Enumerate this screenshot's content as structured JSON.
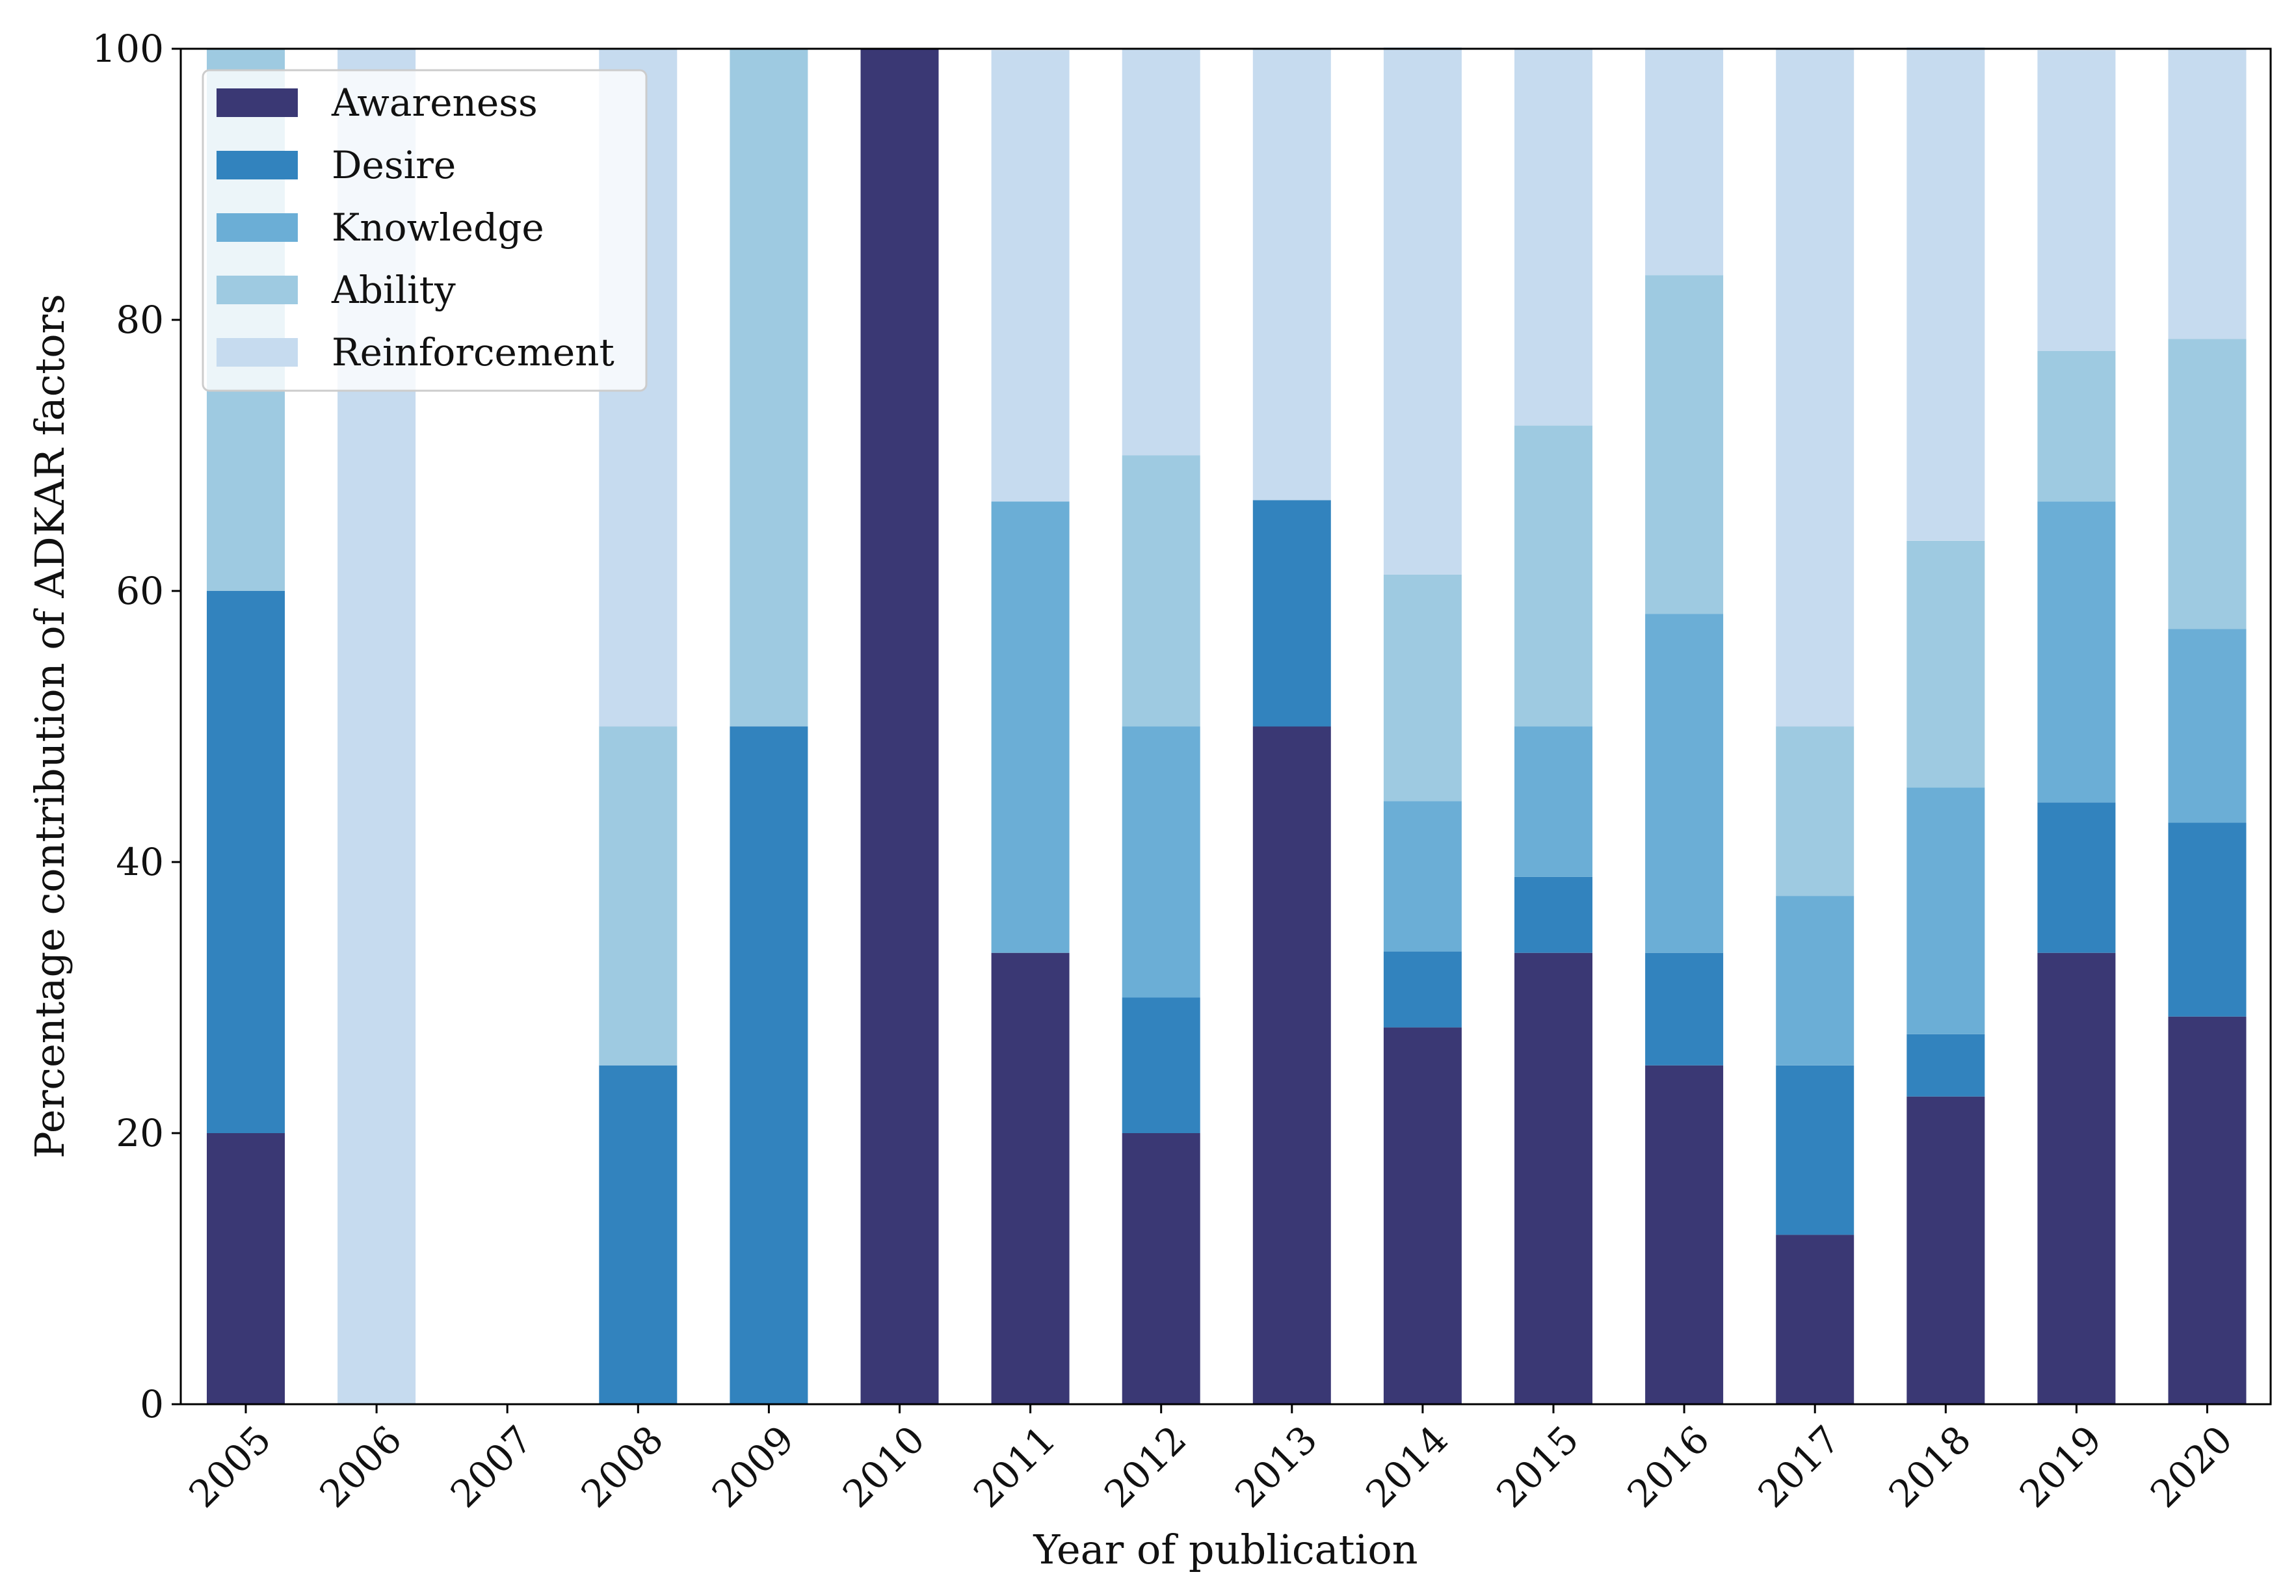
{
  "chart_data": {
    "type": "bar",
    "stacked": true,
    "title": "",
    "xlabel": "Year of publication",
    "ylabel": "Percentage contribution of ADKAR factors",
    "ylim": [
      0,
      100
    ],
    "yticks": [
      0,
      20,
      40,
      60,
      80,
      100
    ],
    "legend_position": "top-left",
    "grid": false,
    "categories": [
      "2005",
      "2006",
      "2007",
      "2008",
      "2009",
      "2010",
      "2011",
      "2012",
      "2013",
      "2014",
      "2015",
      "2016",
      "2017",
      "2018",
      "2019",
      "2020"
    ],
    "series": [
      {
        "name": "Awareness",
        "color": "#3a3874",
        "values": [
          20,
          0,
          0,
          0,
          0,
          100,
          33.3,
          20,
          50,
          27.8,
          33.3,
          25,
          12.5,
          22.7,
          33.3,
          28.6
        ]
      },
      {
        "name": "Desire",
        "color": "#3283be",
        "values": [
          40,
          0,
          0,
          25,
          50,
          0,
          0,
          10,
          16.7,
          5.6,
          5.6,
          8.3,
          12.5,
          4.6,
          11.1,
          14.3
        ]
      },
      {
        "name": "Knowledge",
        "color": "#6baed6",
        "values": [
          0,
          0,
          0,
          0,
          0,
          0,
          33.3,
          20,
          0,
          11.1,
          11.1,
          25,
          12.5,
          18.2,
          22.2,
          14.3
        ]
      },
      {
        "name": "Ability",
        "color": "#9ecae1",
        "values": [
          40,
          0,
          0,
          25,
          50,
          0,
          0,
          20,
          0,
          16.7,
          22.2,
          25,
          12.5,
          18.2,
          11.1,
          21.4
        ]
      },
      {
        "name": "Reinforcement",
        "color": "#c6dbef",
        "values": [
          0,
          100,
          0,
          50,
          0,
          0,
          33.3,
          30,
          33.3,
          38.9,
          27.8,
          16.7,
          50,
          36.4,
          22.2,
          21.4
        ]
      }
    ]
  }
}
